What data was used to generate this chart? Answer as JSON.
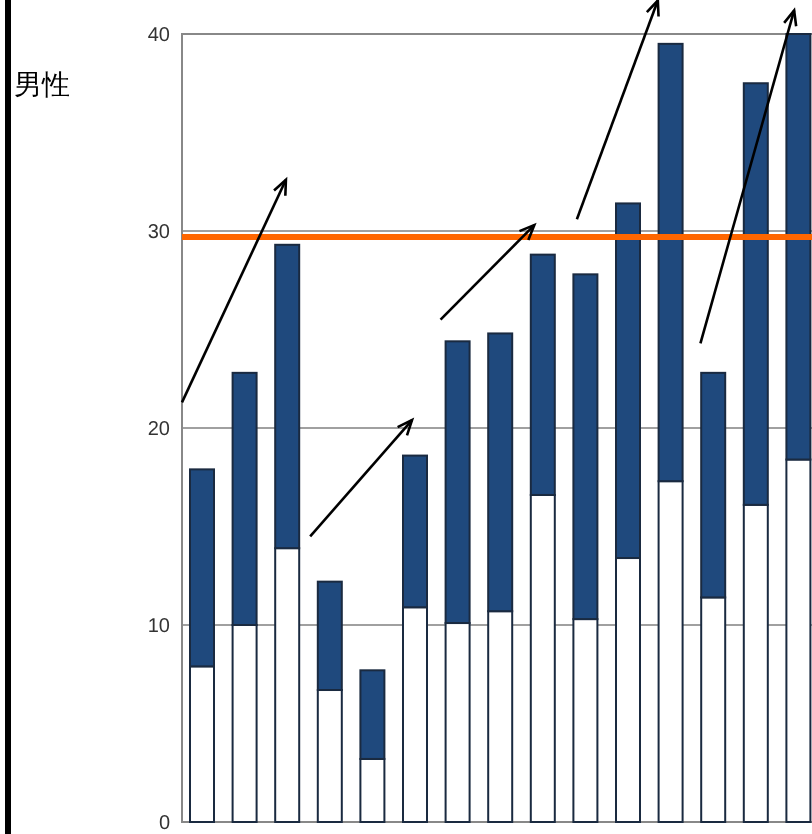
{
  "chart_data": {
    "type": "bar",
    "stacked": true,
    "ylabel": "男性",
    "categories": [
      null,
      null,
      null,
      null,
      null,
      null,
      null,
      null,
      null,
      null,
      null,
      null,
      null,
      null,
      null
    ],
    "series": [
      {
        "color": "#ffffff",
        "values": [
          7.9,
          10.0,
          13.9,
          6.7,
          3.2,
          10.9,
          10.1,
          10.7,
          16.6,
          10.3,
          13.4,
          17.3,
          11.4,
          16.1,
          18.4
        ]
      },
      {
        "color": "#1f497d",
        "values": [
          10.0,
          12.8,
          15.4,
          5.5,
          4.5,
          7.7,
          14.3,
          14.1,
          12.2,
          17.5,
          18.0,
          22.2,
          11.4,
          21.4,
          21.6
        ]
      }
    ],
    "ylim": [
      0,
      40
    ],
    "yticks": [
      0,
      10,
      20,
      30,
      40
    ],
    "grid": "y",
    "tick_labels": "y",
    "ref_lines": [
      {
        "axis": "y",
        "value": 29.7,
        "color": "#ff6600"
      }
    ]
  }
}
